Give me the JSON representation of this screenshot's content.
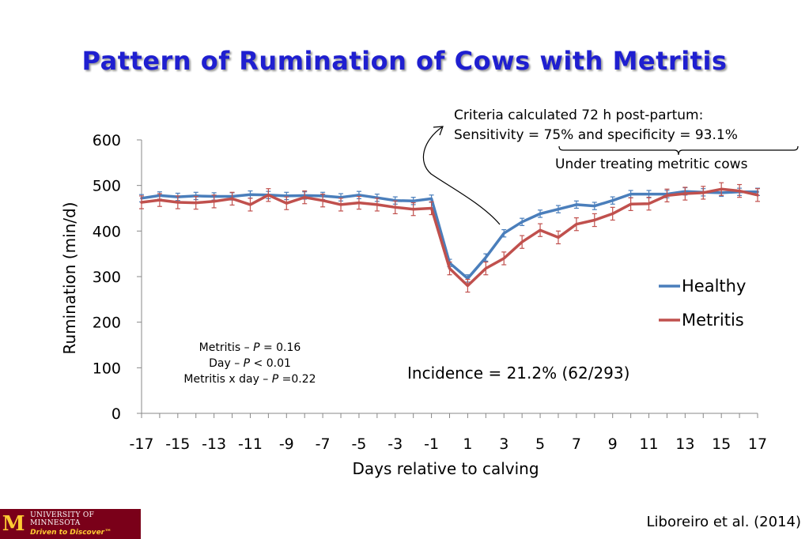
{
  "slide": {
    "title": "Pattern of Rumination of Cows with Metritis",
    "citation": "Liboreiro et al. (2014)",
    "logo": {
      "line1": "UNIVERSITY OF MINNESOTA",
      "line2": "Driven to Discover™",
      "mark": "M"
    }
  },
  "annotations": {
    "criteria_line1": "Criteria calculated 72 h post-partum:",
    "criteria_line2": "Sensitivity = 75% and specificity = 93.1%",
    "under_treating": "Under treating metritic cows",
    "incidence": "Incidence = 21.2% (62/293)",
    "stats": [
      {
        "label": "Metritis – ",
        "p": "P",
        "value": " = 0.16"
      },
      {
        "label": "Day – ",
        "p": "P",
        "value": " < 0.01"
      },
      {
        "label": "Metritis x day – ",
        "p": "P",
        "value": " =0.22"
      }
    ]
  },
  "chart_data": {
    "type": "line",
    "title": "",
    "xlabel": "Days relative to calving",
    "ylabel": "Rumination (min/d)",
    "xlim": [
      -17,
      17
    ],
    "ylim": [
      0,
      600
    ],
    "yticks": [
      0,
      100,
      200,
      300,
      400,
      500,
      600
    ],
    "xtick_labels": [
      "-17",
      "-15",
      "-13",
      "-11",
      "-9",
      "-7",
      "-5",
      "-3",
      "-1",
      "1",
      "3",
      "5",
      "7",
      "9",
      "11",
      "13",
      "15",
      "17"
    ],
    "grid": false,
    "legend": {
      "position": "right",
      "entries": [
        "Healthy",
        "Metritis"
      ]
    },
    "x": [
      -17,
      -16,
      -15,
      -14,
      -13,
      -12,
      -11,
      -10,
      -9,
      -8,
      -7,
      -6,
      -5,
      -4,
      -3,
      -2,
      -1,
      0,
      1,
      2,
      3,
      4,
      5,
      6,
      7,
      8,
      9,
      10,
      11,
      12,
      13,
      14,
      15,
      16,
      17
    ],
    "series": [
      {
        "name": "Healthy",
        "color": "#4a7ebb",
        "values": [
          472,
          478,
          475,
          477,
          476,
          476,
          480,
          479,
          477,
          478,
          477,
          474,
          479,
          473,
          467,
          466,
          471,
          330,
          296,
          342,
          395,
          420,
          438,
          448,
          458,
          455,
          467,
          481,
          481,
          481,
          487,
          485,
          484,
          486,
          486
        ],
        "error": [
          8,
          8,
          8,
          8,
          8,
          8,
          8,
          8,
          8,
          8,
          8,
          8,
          8,
          8,
          8,
          8,
          8,
          8,
          8,
          8,
          8,
          8,
          8,
          8,
          8,
          8,
          8,
          8,
          8,
          8,
          8,
          8,
          8,
          8,
          8
        ]
      },
      {
        "name": "Metritis",
        "color": "#c0504d",
        "values": [
          463,
          468,
          463,
          462,
          465,
          471,
          458,
          479,
          461,
          474,
          467,
          458,
          462,
          458,
          452,
          448,
          450,
          318,
          280,
          318,
          340,
          376,
          402,
          386,
          415,
          424,
          438,
          459,
          460,
          478,
          482,
          484,
          492,
          488,
          479
        ],
        "error": [
          14,
          14,
          14,
          14,
          14,
          14,
          14,
          14,
          14,
          14,
          14,
          14,
          14,
          14,
          14,
          14,
          14,
          14,
          14,
          14,
          14,
          14,
          14,
          14,
          14,
          14,
          14,
          14,
          14,
          14,
          14,
          14,
          14,
          14,
          14
        ]
      }
    ]
  }
}
